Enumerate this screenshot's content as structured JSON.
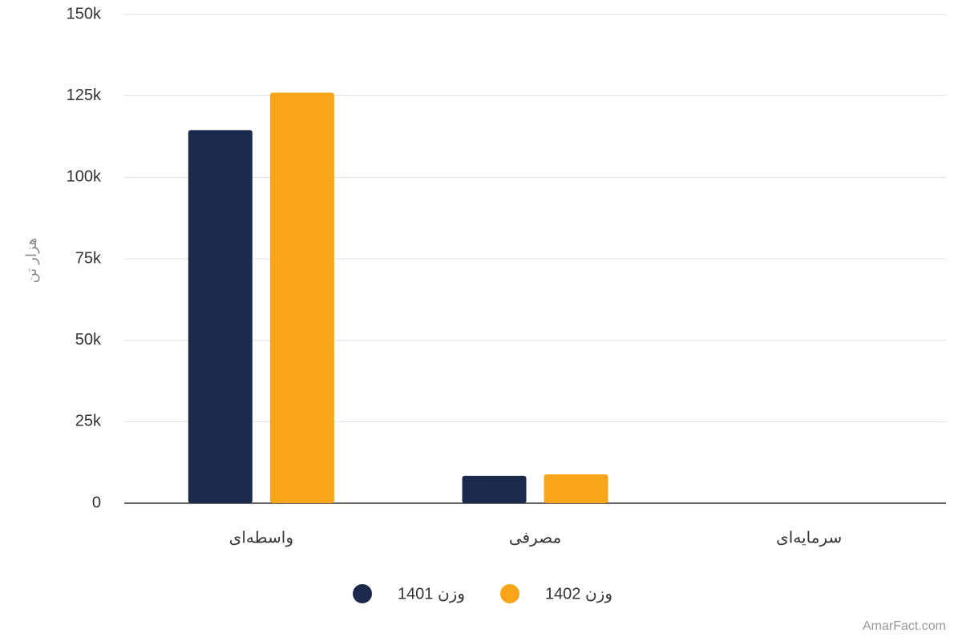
{
  "chart_data": {
    "type": "bar",
    "y_label": "هزار تن",
    "categories": [
      "واسطه‌ای",
      "مصرفی",
      "سرمایه‌ای"
    ],
    "series": [
      {
        "name": "وزن 1401",
        "color": "#1b2a4c",
        "values": [
          114500,
          8400,
          0
        ]
      },
      {
        "name": "وزن 1402",
        "color": "#f9a51a",
        "values": [
          126000,
          8850,
          0
        ]
      }
    ],
    "ylim": [
      0,
      150000
    ],
    "yticks": [
      0,
      {
        "value": 25000,
        "label": "25k"
      },
      {
        "value": 50000,
        "label": "50k"
      },
      {
        "value": 75000,
        "label": "75k"
      },
      {
        "value": 100000,
        "label": "100k"
      },
      {
        "value": 125000,
        "label": "125k"
      },
      {
        "value": 150000,
        "label": "150k"
      }
    ],
    "grid": true,
    "legend": "bottom",
    "watermark": "AmarFact.com"
  }
}
